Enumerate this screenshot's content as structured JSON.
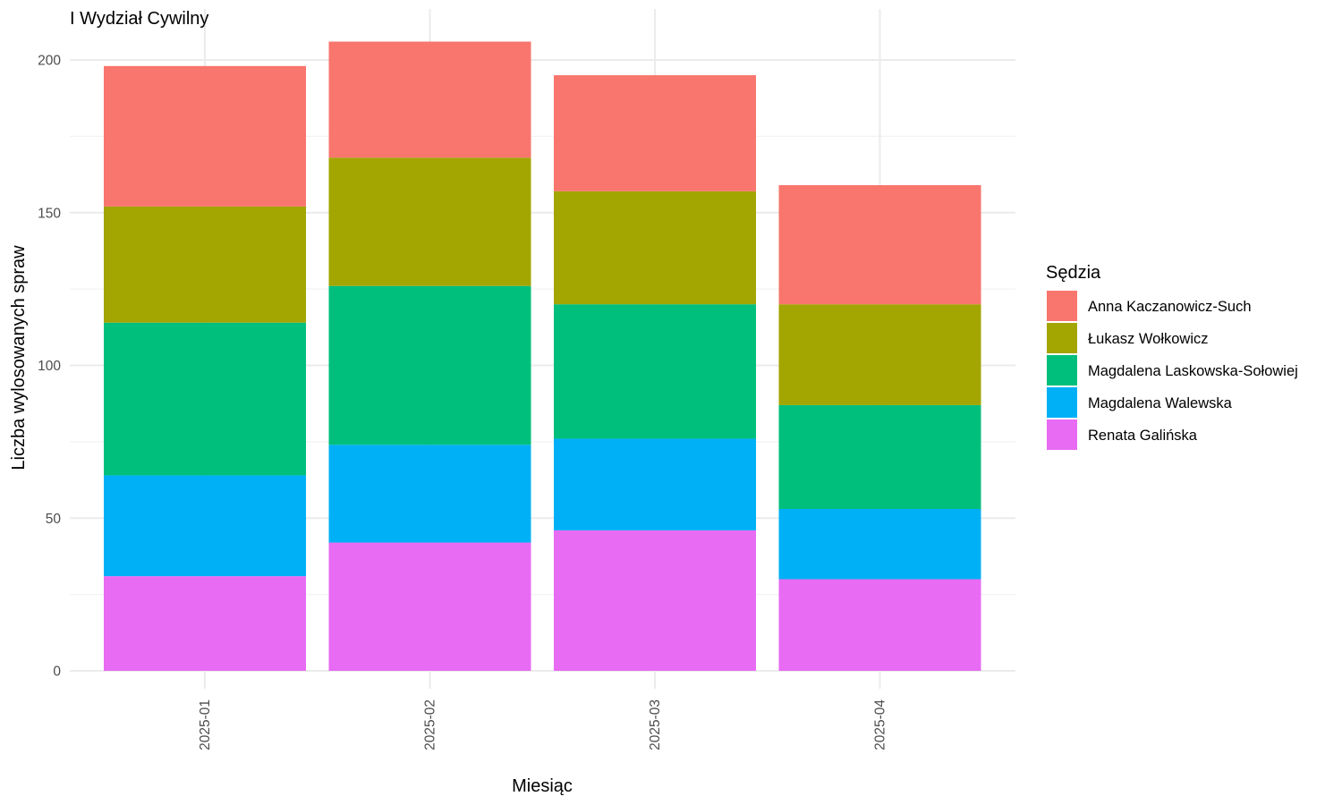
{
  "chart_data": {
    "type": "bar",
    "stacked": true,
    "title": "I Wydział Cywilny",
    "xlabel": "Miesiąc",
    "ylabel": "Liczba wylosowanych spraw",
    "categories": [
      "2025-01",
      "2025-02",
      "2025-03",
      "2025-04"
    ],
    "ylim": [
      0,
      206
    ],
    "yticks": [
      0,
      50,
      100,
      150,
      200
    ],
    "grid": true,
    "legend": {
      "title": "Sędzia",
      "position": "right"
    },
    "series": [
      {
        "name": "Renata Galińska",
        "color": "#E76BF3",
        "values": [
          31,
          42,
          46,
          30
        ]
      },
      {
        "name": "Magdalena Walewska",
        "color": "#00B0F6",
        "values": [
          33,
          32,
          30,
          23
        ]
      },
      {
        "name": "Magdalena Laskowska-Sołowiej",
        "color": "#00BF7D",
        "values": [
          50,
          52,
          44,
          34
        ]
      },
      {
        "name": "Łukasz Wołkowicz",
        "color": "#A3A500",
        "values": [
          38,
          42,
          37,
          33
        ]
      },
      {
        "name": "Anna Kaczanowicz-Such",
        "color": "#F8766D",
        "values": [
          46,
          38,
          38,
          39
        ]
      }
    ],
    "legend_order": [
      "Anna Kaczanowicz-Such",
      "Łukasz Wołkowicz",
      "Magdalena Laskowska-Sołowiej",
      "Magdalena Walewska",
      "Renata Galińska"
    ]
  }
}
